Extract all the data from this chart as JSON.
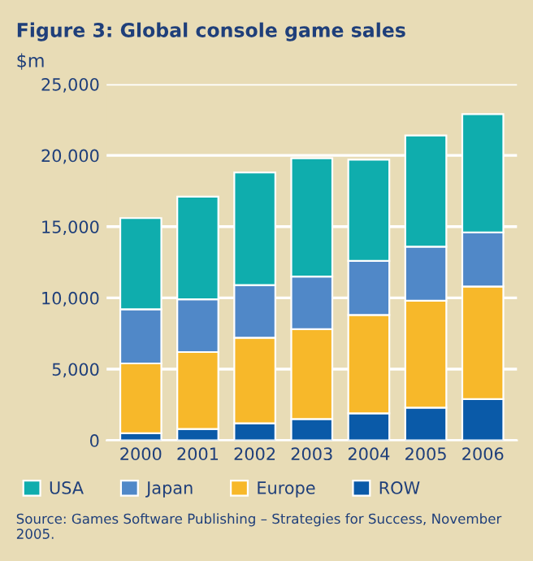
{
  "chart_data": {
    "type": "bar",
    "stacked": true,
    "title": "Figure 3: Global console game sales",
    "ylabel": "$m",
    "categories": [
      "2000",
      "2001",
      "2002",
      "2003",
      "2004",
      "2005",
      "2006"
    ],
    "series": [
      {
        "name": "ROW",
        "color": "#0a5aa8",
        "values": [
          500,
          800,
          1200,
          1500,
          1900,
          2300,
          2900
        ]
      },
      {
        "name": "Europe",
        "color": "#f7b82a",
        "values": [
          4900,
          5400,
          6000,
          6300,
          6900,
          7500,
          7900
        ]
      },
      {
        "name": "Japan",
        "color": "#5088c8",
        "values": [
          3800,
          3700,
          3700,
          3700,
          3800,
          3800,
          3800
        ]
      },
      {
        "name": "USA",
        "color": "#0fadad",
        "values": [
          6400,
          7200,
          7900,
          8300,
          7100,
          7800,
          8300
        ]
      }
    ],
    "ylim": [
      0,
      25000
    ],
    "yticks": [
      {
        "value": 0,
        "label": "0"
      },
      {
        "value": 5000,
        "label": "5,000"
      },
      {
        "value": 10000,
        "label": "10,000"
      },
      {
        "value": 15000,
        "label": "15,000"
      },
      {
        "value": 20000,
        "label": "20,000"
      },
      {
        "value": 25000,
        "label": "25,000"
      }
    ],
    "grid": "y",
    "legend": "bottom",
    "annotations": [
      "Source: Games Software Publishing – Strategies for Success, November 2005."
    ]
  }
}
